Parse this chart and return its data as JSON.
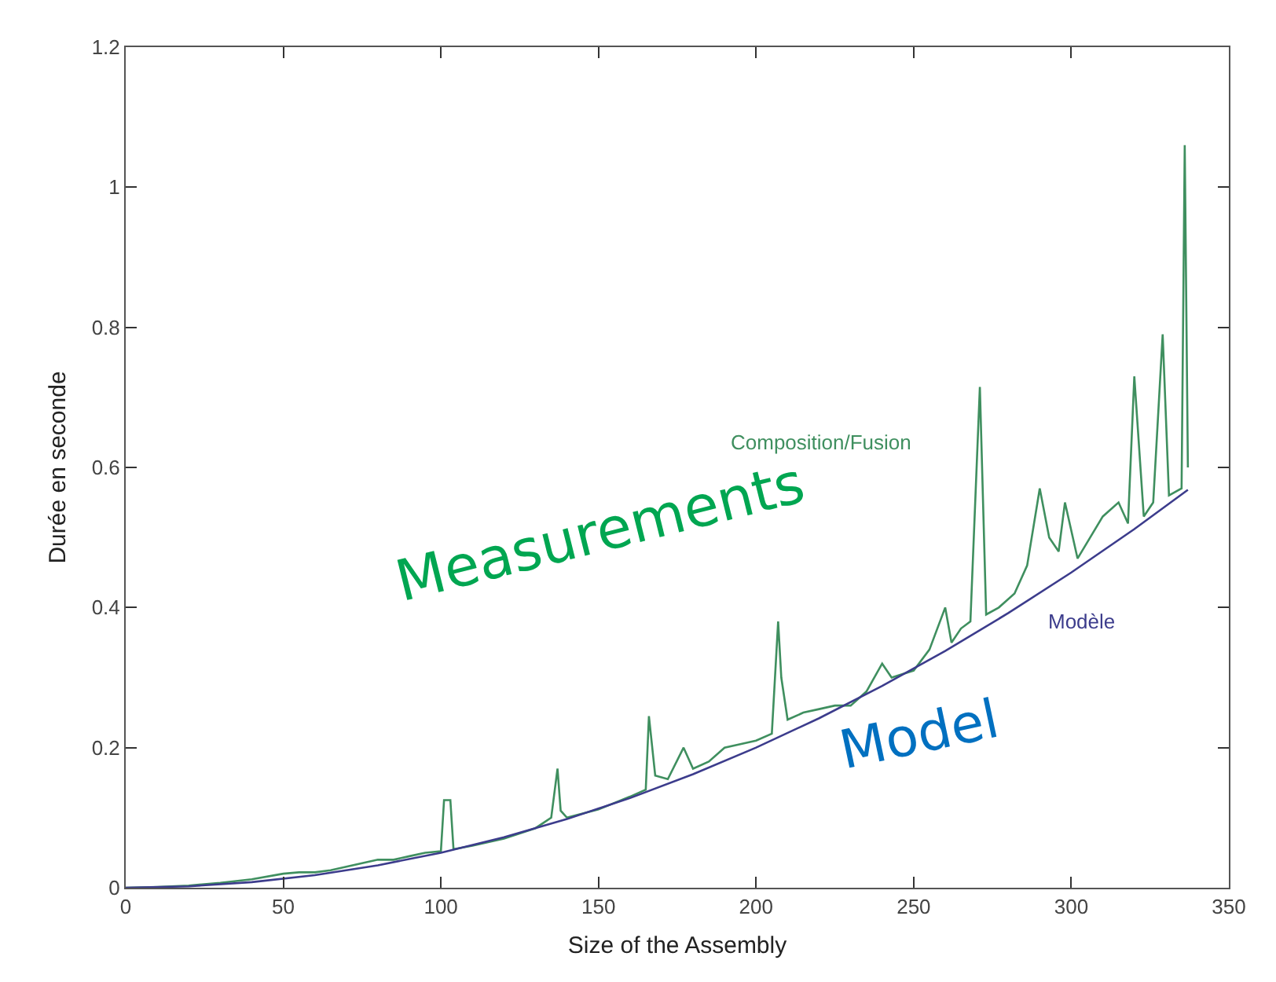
{
  "chart_data": {
    "type": "line",
    "xlabel": "Size of the Assembly",
    "ylabel": "Durée en seconde",
    "xlim": [
      0,
      350
    ],
    "xticks": [
      0,
      50,
      100,
      150,
      200,
      250,
      300,
      350
    ],
    "ylim": [
      0,
      1.2
    ],
    "yticks": [
      0,
      0.2,
      0.4,
      0.6,
      0.8,
      1,
      1.2
    ],
    "grid": false,
    "legend": false,
    "marker": "none",
    "line_style": "solid",
    "series": [
      {
        "name": "Composition/Fusion",
        "color": "#3f8f5f",
        "x": [
          0,
          10,
          20,
          30,
          40,
          50,
          55,
          60,
          65,
          70,
          75,
          80,
          85,
          90,
          95,
          100,
          101,
          103,
          104,
          110,
          120,
          130,
          135,
          137,
          138,
          140,
          150,
          160,
          165,
          166,
          168,
          172,
          177,
          180,
          185,
          190,
          195,
          200,
          205,
          207,
          208,
          210,
          215,
          220,
          225,
          230,
          235,
          240,
          243,
          250,
          255,
          260,
          262,
          265,
          268,
          271,
          273,
          277,
          282,
          286,
          290,
          293,
          296,
          298,
          302,
          306,
          310,
          315,
          318,
          320,
          323,
          326,
          329,
          331,
          335,
          336,
          337
        ],
        "values": [
          0,
          0.001,
          0.003,
          0.007,
          0.012,
          0.02,
          0.022,
          0.022,
          0.025,
          0.03,
          0.035,
          0.04,
          0.04,
          0.045,
          0.05,
          0.052,
          0.125,
          0.125,
          0.055,
          0.06,
          0.07,
          0.085,
          0.1,
          0.17,
          0.11,
          0.1,
          0.112,
          0.13,
          0.14,
          0.245,
          0.16,
          0.155,
          0.2,
          0.17,
          0.18,
          0.2,
          0.205,
          0.21,
          0.22,
          0.38,
          0.3,
          0.24,
          0.25,
          0.255,
          0.26,
          0.26,
          0.28,
          0.32,
          0.3,
          0.31,
          0.34,
          0.4,
          0.35,
          0.37,
          0.38,
          0.715,
          0.39,
          0.4,
          0.42,
          0.46,
          0.57,
          0.5,
          0.48,
          0.55,
          0.47,
          0.5,
          0.53,
          0.55,
          0.52,
          0.73,
          0.53,
          0.55,
          0.79,
          0.56,
          0.57,
          1.06,
          0.6
        ]
      },
      {
        "name": "Modèle",
        "color": "#3c3c8c",
        "x": [
          0,
          20,
          40,
          60,
          80,
          100,
          120,
          140,
          160,
          180,
          200,
          220,
          240,
          260,
          280,
          300,
          320,
          337
        ],
        "values": [
          0,
          0.002,
          0.008,
          0.018,
          0.032,
          0.05,
          0.072,
          0.098,
          0.128,
          0.162,
          0.2,
          0.242,
          0.288,
          0.338,
          0.392,
          0.45,
          0.512,
          0.568
        ]
      }
    ],
    "annotations": [
      "Measurements",
      "Model"
    ]
  }
}
